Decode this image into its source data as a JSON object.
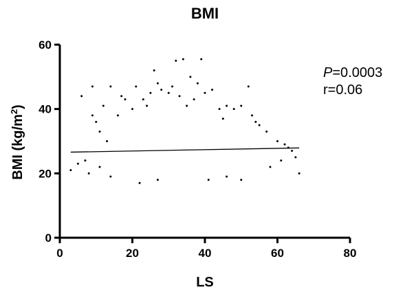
{
  "chart_data": {
    "type": "scatter",
    "title": "BMI",
    "xlabel": "LS",
    "ylabel_base": "BMI (kg/m",
    "ylabel_sup": "2",
    "ylabel_end": ")",
    "xlim": [
      0,
      80
    ],
    "ylim": [
      0,
      60
    ],
    "x_ticks": [
      0,
      20,
      40,
      60,
      80
    ],
    "y_ticks": [
      0,
      20,
      40,
      60
    ],
    "grid": false,
    "point_color": "#000000",
    "points": [
      [
        3,
        21
      ],
      [
        5,
        23
      ],
      [
        6,
        44
      ],
      [
        7,
        24
      ],
      [
        8,
        20
      ],
      [
        9,
        47
      ],
      [
        9,
        38
      ],
      [
        10,
        36
      ],
      [
        11,
        33
      ],
      [
        11,
        22
      ],
      [
        12,
        41
      ],
      [
        13,
        30
      ],
      [
        14,
        47
      ],
      [
        14,
        19
      ],
      [
        16,
        38
      ],
      [
        17,
        44
      ],
      [
        18,
        43
      ],
      [
        20,
        40
      ],
      [
        21,
        47
      ],
      [
        22,
        17
      ],
      [
        23,
        43
      ],
      [
        24,
        41
      ],
      [
        25,
        45
      ],
      [
        26,
        52
      ],
      [
        27,
        48
      ],
      [
        27,
        18
      ],
      [
        28,
        46
      ],
      [
        30,
        45
      ],
      [
        31,
        47
      ],
      [
        32,
        55
      ],
      [
        33,
        44
      ],
      [
        34,
        55.5
      ],
      [
        35,
        41
      ],
      [
        36,
        50
      ],
      [
        37,
        43
      ],
      [
        38,
        48
      ],
      [
        39,
        55.5
      ],
      [
        40,
        45
      ],
      [
        41,
        18
      ],
      [
        42,
        46
      ],
      [
        44,
        40
      ],
      [
        45,
        37
      ],
      [
        46,
        41
      ],
      [
        48,
        40
      ],
      [
        50,
        41
      ],
      [
        52,
        47
      ],
      [
        53,
        38
      ],
      [
        54,
        36
      ],
      [
        55,
        35
      ],
      [
        57,
        33
      ],
      [
        58,
        22
      ],
      [
        60,
        30
      ],
      [
        61,
        24
      ],
      [
        62,
        29
      ],
      [
        63,
        28
      ],
      [
        64,
        27
      ],
      [
        65,
        25
      ],
      [
        66,
        20
      ],
      [
        50,
        18
      ],
      [
        46,
        19
      ]
    ],
    "regression": {
      "x": [
        3,
        66
      ],
      "y": [
        26.6,
        27.9
      ]
    },
    "annotation": {
      "p_label": "P",
      "p_value": "=0.0003",
      "r": "r=0.06"
    }
  }
}
